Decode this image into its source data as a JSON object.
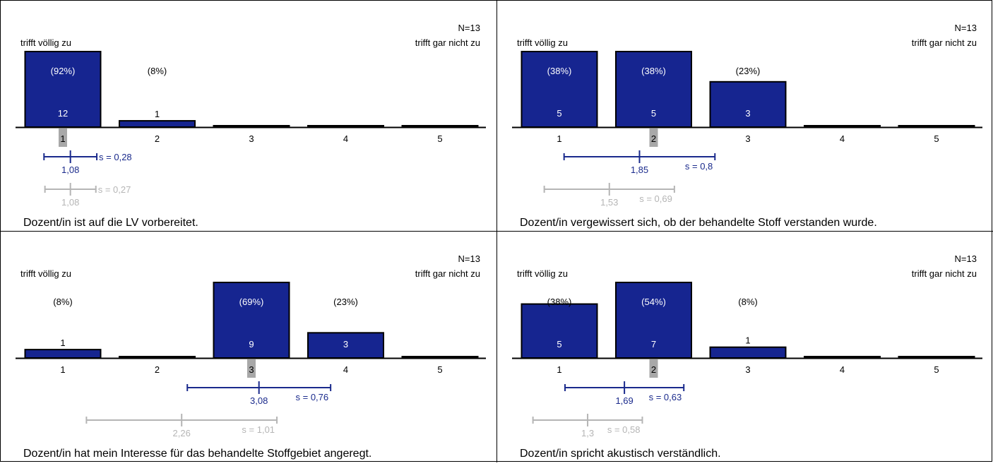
{
  "colors": {
    "bar": "#162590",
    "bar_border": "#000000",
    "mean_current": "#1a2a8c",
    "mean_previous": "#b5b5b5",
    "median_marker": "#a8a8a8",
    "grid_border": "#000000"
  },
  "chart_data": [
    {
      "type": "bar",
      "n_label": "N=13",
      "left_label": "trifft völlig zu",
      "right_label": "trifft gar nicht zu",
      "categories": [
        "1",
        "2",
        "3",
        "4",
        "5"
      ],
      "values": [
        12,
        1,
        0,
        0,
        0
      ],
      "percent_labels": [
        "(92%)",
        "(8%)",
        "",
        "",
        ""
      ],
      "count_labels": [
        "12",
        "1",
        "",
        "",
        ""
      ],
      "ymax": 12,
      "median_category": 1,
      "mean": {
        "value": 1.08,
        "label": "1,08",
        "sd": 0.28,
        "sd_label": "s = 0,28"
      },
      "previous_mean": {
        "value": 1.08,
        "label": "1,08",
        "sd": 0.27,
        "sd_label": "s = 0,27"
      },
      "question": "Dozent/in ist auf die LV vorbereitet."
    },
    {
      "type": "bar",
      "n_label": "N=13",
      "left_label": "trifft völlig zu",
      "right_label": "trifft gar nicht zu",
      "categories": [
        "1",
        "2",
        "3",
        "4",
        "5"
      ],
      "values": [
        5,
        5,
        3,
        0,
        0
      ],
      "percent_labels": [
        "(38%)",
        "(38%)",
        "(23%)",
        "",
        ""
      ],
      "count_labels": [
        "5",
        "5",
        "3",
        "",
        ""
      ],
      "ymax": 5,
      "median_category": 2,
      "mean": {
        "value": 1.85,
        "label": "1,85",
        "sd": 0.8,
        "sd_label": "s = 0,8"
      },
      "previous_mean": {
        "value": 1.53,
        "label": "1,53",
        "sd": 0.69,
        "sd_label": "s = 0,69"
      },
      "question": "Dozent/in vergewissert sich, ob der behandelte Stoff verstanden wurde."
    },
    {
      "type": "bar",
      "n_label": "N=13",
      "left_label": "trifft völlig zu",
      "right_label": "trifft gar nicht zu",
      "categories": [
        "1",
        "2",
        "3",
        "4",
        "5"
      ],
      "values": [
        1,
        0,
        9,
        3,
        0
      ],
      "percent_labels": [
        "(8%)",
        "",
        "(69%)",
        "(23%)",
        ""
      ],
      "count_labels": [
        "1",
        "",
        "9",
        "3",
        ""
      ],
      "ymax": 9,
      "median_category": 3,
      "mean": {
        "value": 3.08,
        "label": "3,08",
        "sd": 0.76,
        "sd_label": "s = 0,76"
      },
      "previous_mean": {
        "value": 2.26,
        "label": "2,26",
        "sd": 1.01,
        "sd_label": "s = 1,01"
      },
      "question": "Dozent/in hat mein Interesse für das behandelte Stoffgebiet angeregt."
    },
    {
      "type": "bar",
      "n_label": "N=13",
      "left_label": "trifft völlig zu",
      "right_label": "trifft gar nicht zu",
      "categories": [
        "1",
        "2",
        "3",
        "4",
        "5"
      ],
      "values": [
        5,
        7,
        1,
        0,
        0
      ],
      "percent_labels": [
        "(38%)",
        "(54%)",
        "(8%)",
        "",
        ""
      ],
      "count_labels": [
        "5",
        "7",
        "1",
        "",
        ""
      ],
      "ymax": 7,
      "median_category": 2,
      "mean": {
        "value": 1.69,
        "label": "1,69",
        "sd": 0.63,
        "sd_label": "s = 0,63"
      },
      "previous_mean": {
        "value": 1.3,
        "label": "1,3",
        "sd": 0.58,
        "sd_label": "s = 0,58"
      },
      "question": "Dozent/in spricht akustisch verständlich."
    }
  ]
}
